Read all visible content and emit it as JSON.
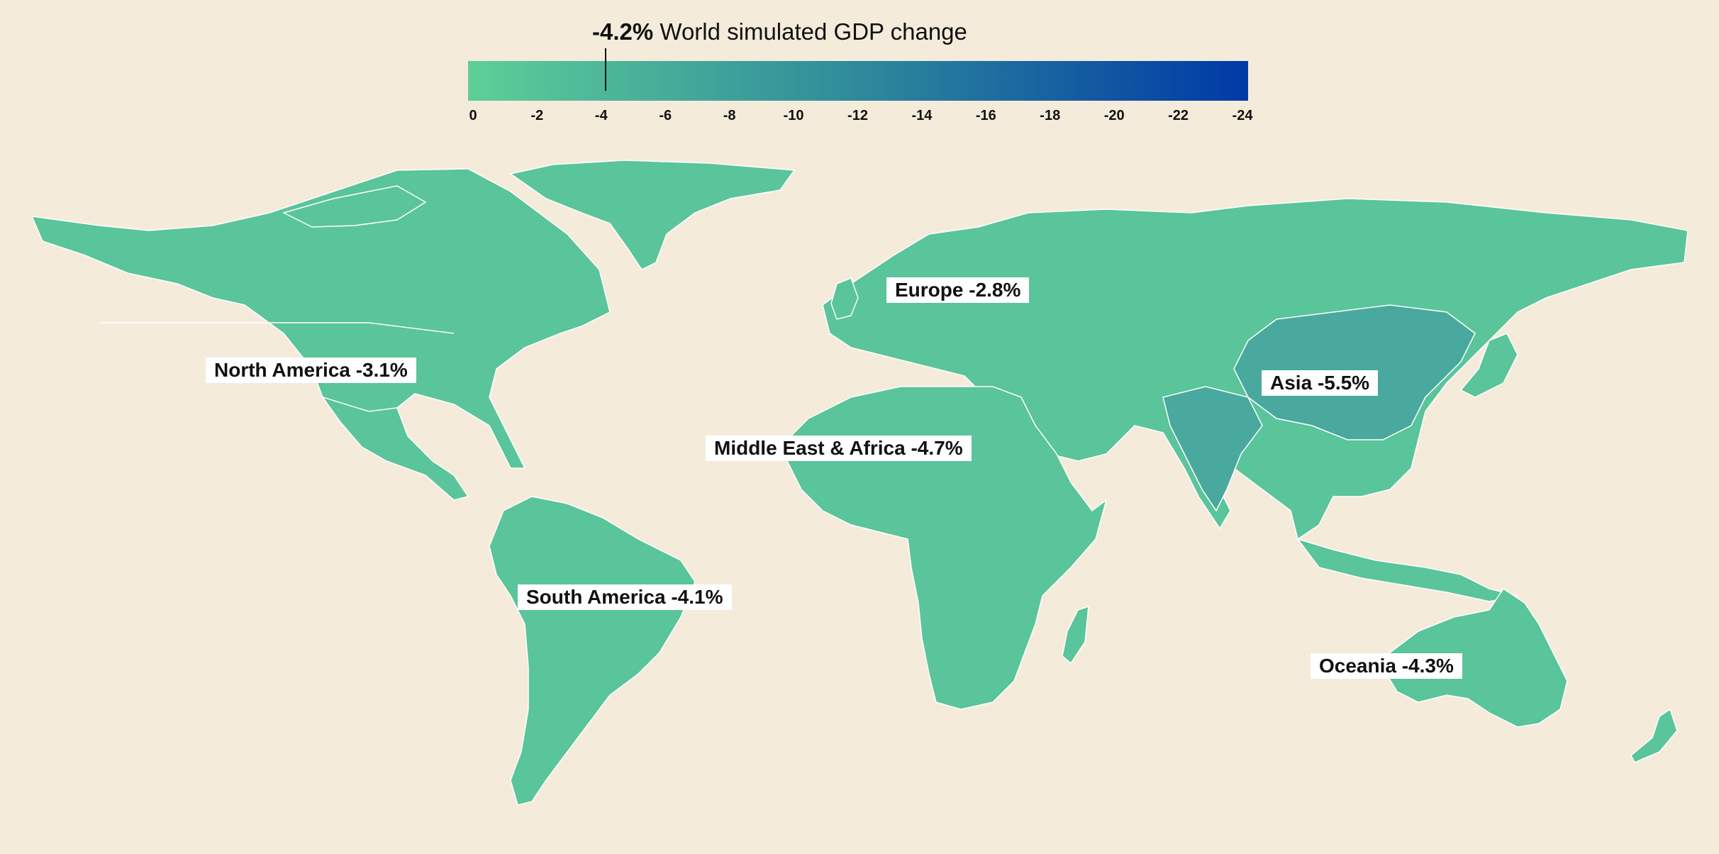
{
  "legend": {
    "headline_value": "-4.2%",
    "headline_text": "World simulated GDP change",
    "marker_value": -4.2,
    "scale_min": 0,
    "scale_max": -24,
    "ticks": [
      "0",
      "-2",
      "-4",
      "-6",
      "-8",
      "-10",
      "-12",
      "-14",
      "-16",
      "-18",
      "-20",
      "-22",
      "-24"
    ],
    "color_low": "#5ecf98",
    "color_mid": "#2e8a9b",
    "color_high": "#0039a6"
  },
  "regions": {
    "north_america": {
      "name": "North America",
      "value": "-3.1%"
    },
    "europe": {
      "name": "Europe",
      "value": "-2.8%"
    },
    "asia": {
      "name": "Asia",
      "value": "-5.5%"
    },
    "middle_east_africa": {
      "name": "Middle East & Africa",
      "value": "-4.7%"
    },
    "south_america": {
      "name": "South America",
      "value": "-4.1%"
    },
    "oceania": {
      "name": "Oceania",
      "value": "-4.3%"
    }
  },
  "colors": {
    "background": "#f5ebdb",
    "land_light": "#5ac49a",
    "land_mid": "#50b79c",
    "land_dark": "#4aa99e",
    "border": "#ffffff"
  }
}
